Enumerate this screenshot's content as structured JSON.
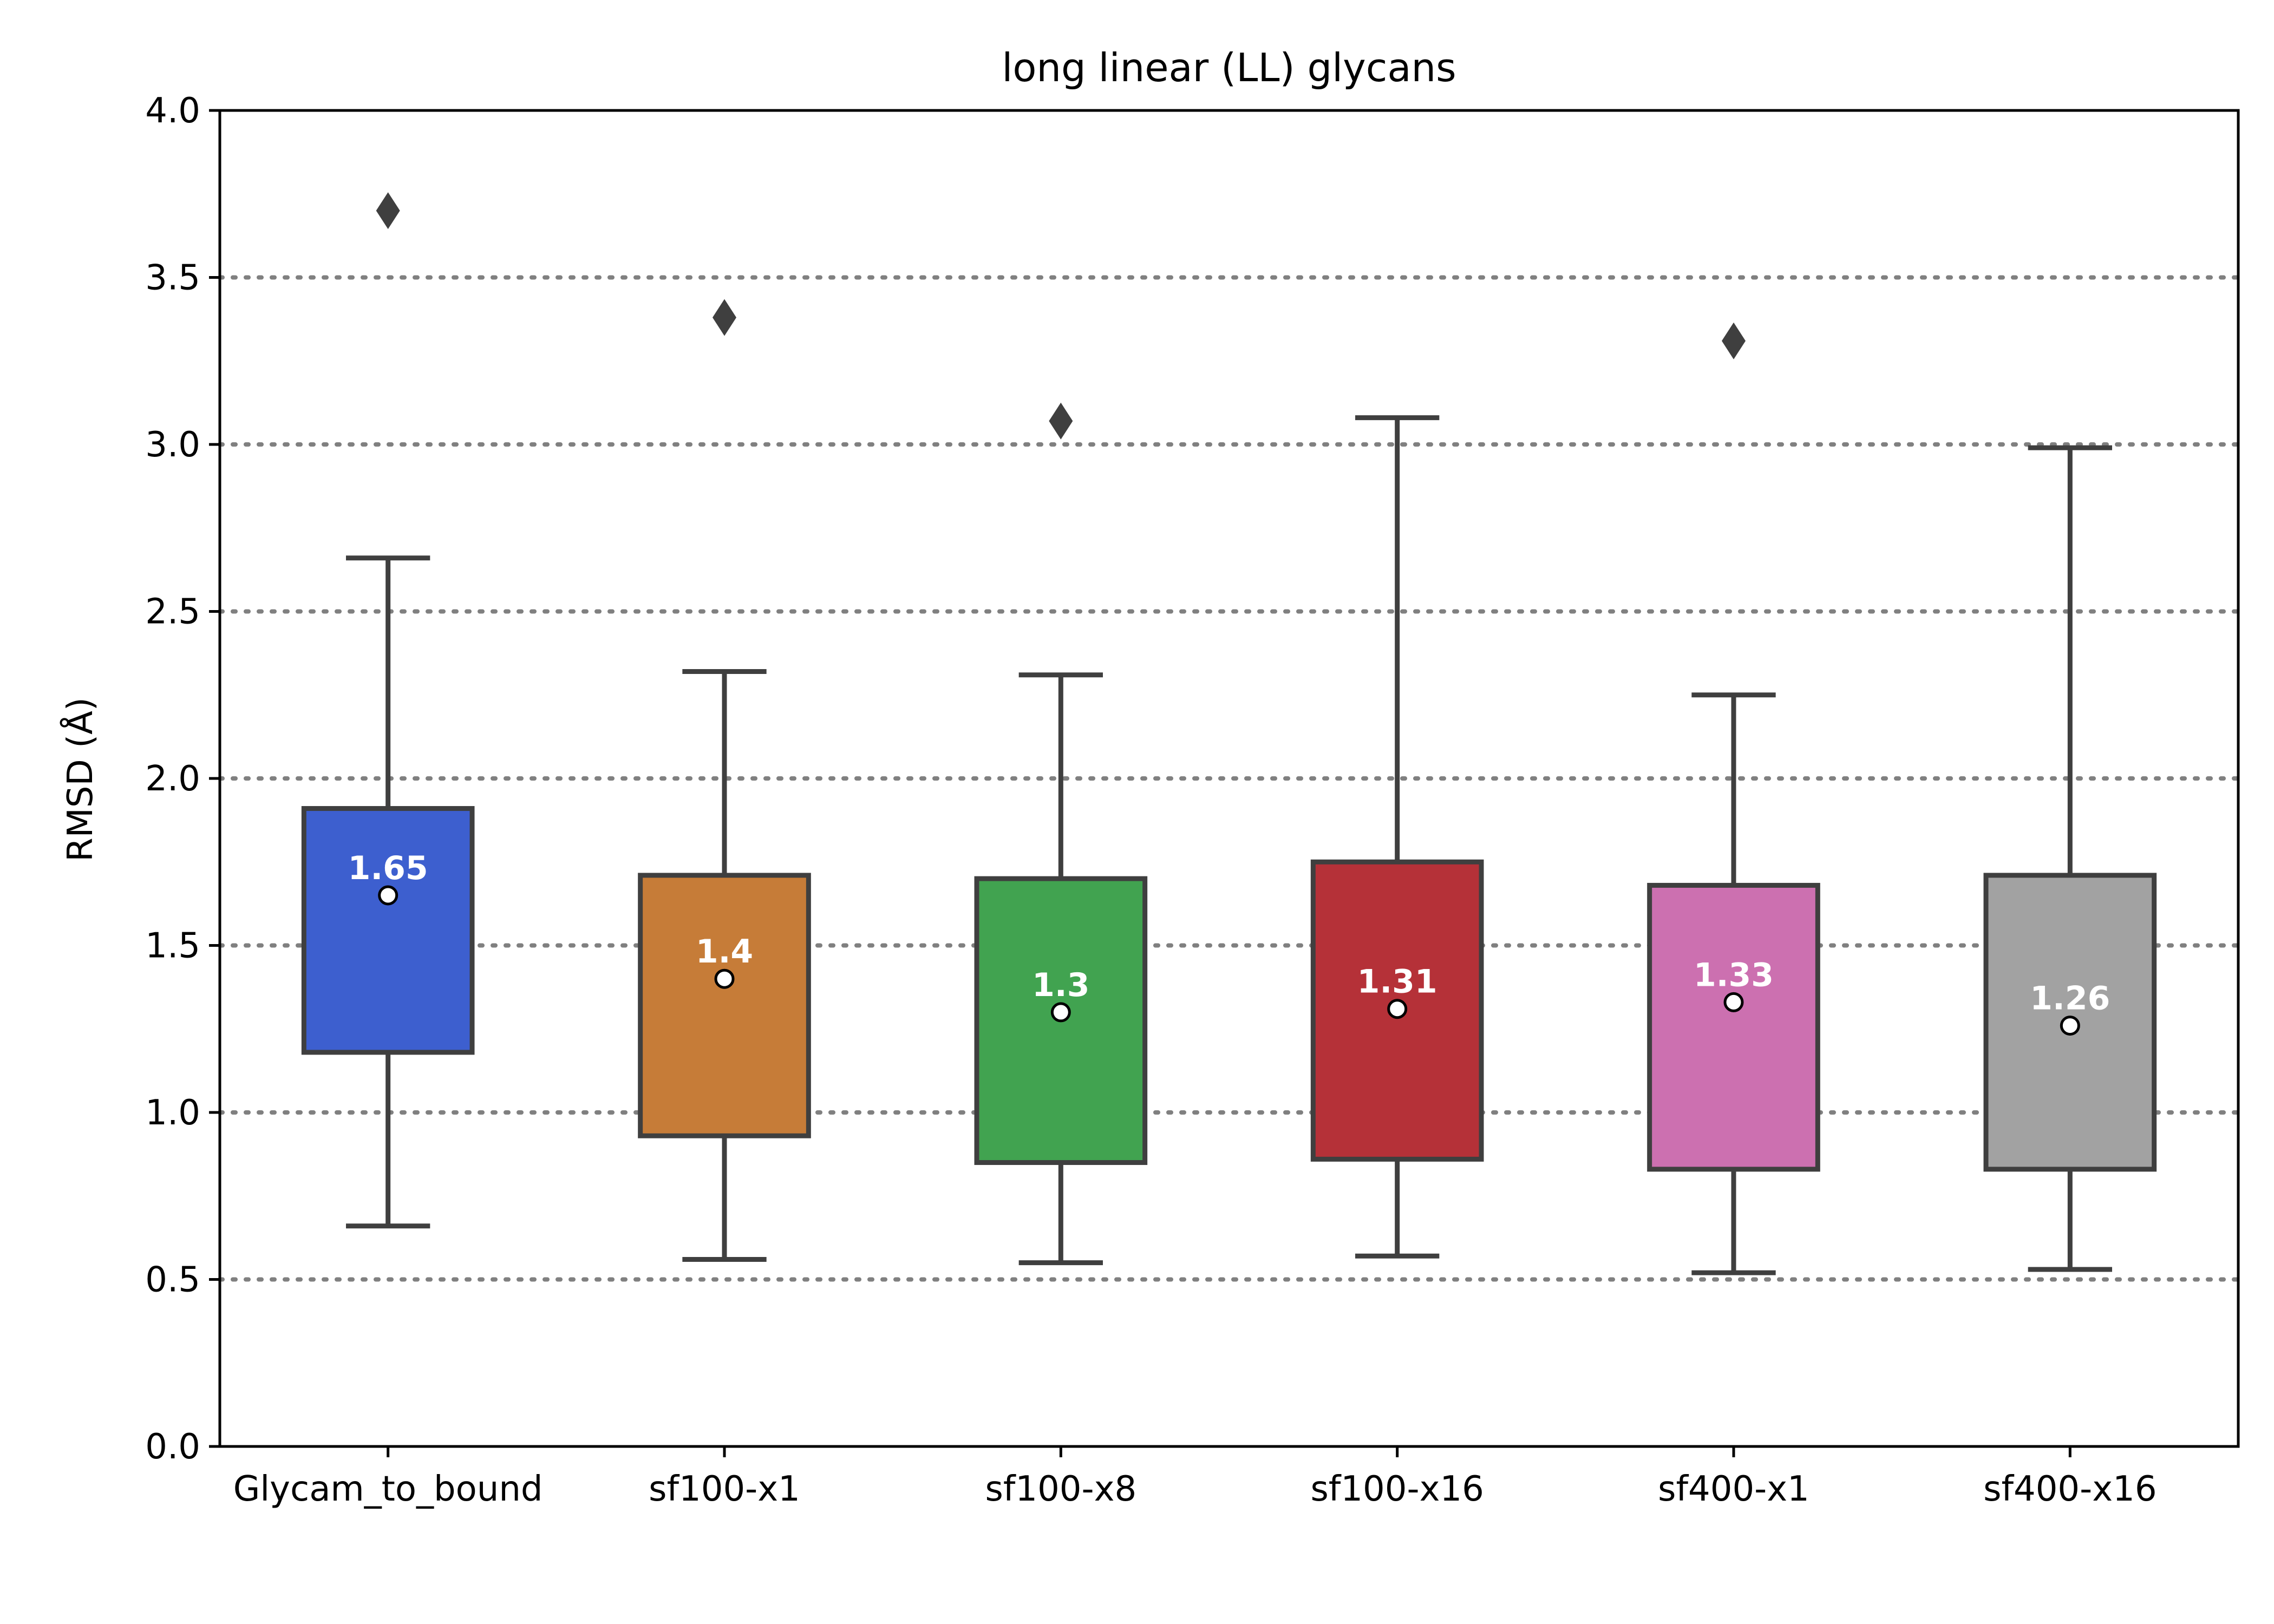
{
  "chart_data": {
    "type": "box",
    "title": "long linear (LL) glycans",
    "xlabel": "",
    "ylabel": "RMSD (Å)",
    "ylim": [
      0,
      4
    ],
    "yticks": [
      "0.0",
      "0.5",
      "1.0",
      "1.5",
      "2.0",
      "2.5",
      "3.0",
      "3.5",
      "4.0"
    ],
    "grid": "horizontal dotted at 0.5 intervals",
    "categories": [
      "Glycam_to_bound",
      "sf100-x1",
      "sf100-x8",
      "sf100-x16",
      "sf400-x1",
      "sf400-x16"
    ],
    "boxes": [
      {
        "category": "Glycam_to_bound",
        "color": "#3d5fcf",
        "whisker_low": 0.66,
        "q1": 1.18,
        "q3": 1.91,
        "whisker_high": 2.66,
        "mean": 1.65,
        "mean_label": "1.65",
        "outliers": [
          3.7
        ]
      },
      {
        "category": "sf100-x1",
        "color": "#c67c38",
        "whisker_low": 0.56,
        "q1": 0.93,
        "q3": 1.71,
        "whisker_high": 2.32,
        "mean": 1.4,
        "mean_label": "1.4",
        "outliers": [
          3.38
        ]
      },
      {
        "category": "sf100-x8",
        "color": "#41a350",
        "whisker_low": 0.55,
        "q1": 0.85,
        "q3": 1.7,
        "whisker_high": 2.31,
        "mean": 1.3,
        "mean_label": "1.3",
        "outliers": [
          3.07
        ]
      },
      {
        "category": "sf100-x16",
        "color": "#b53138",
        "whisker_low": 0.57,
        "q1": 0.86,
        "q3": 1.75,
        "whisker_high": 3.08,
        "mean": 1.31,
        "mean_label": "1.31",
        "outliers": []
      },
      {
        "category": "sf400-x1",
        "color": "#cc70b0",
        "whisker_low": 0.52,
        "q1": 0.83,
        "q3": 1.68,
        "whisker_high": 2.25,
        "mean": 1.33,
        "mean_label": "1.33",
        "outliers": [
          3.31
        ]
      },
      {
        "category": "sf400-x16",
        "color": "#a2a2a2",
        "whisker_low": 0.53,
        "q1": 0.83,
        "q3": 1.71,
        "whisker_high": 2.99,
        "mean": 1.26,
        "mean_label": "1.26",
        "outliers": []
      }
    ]
  }
}
